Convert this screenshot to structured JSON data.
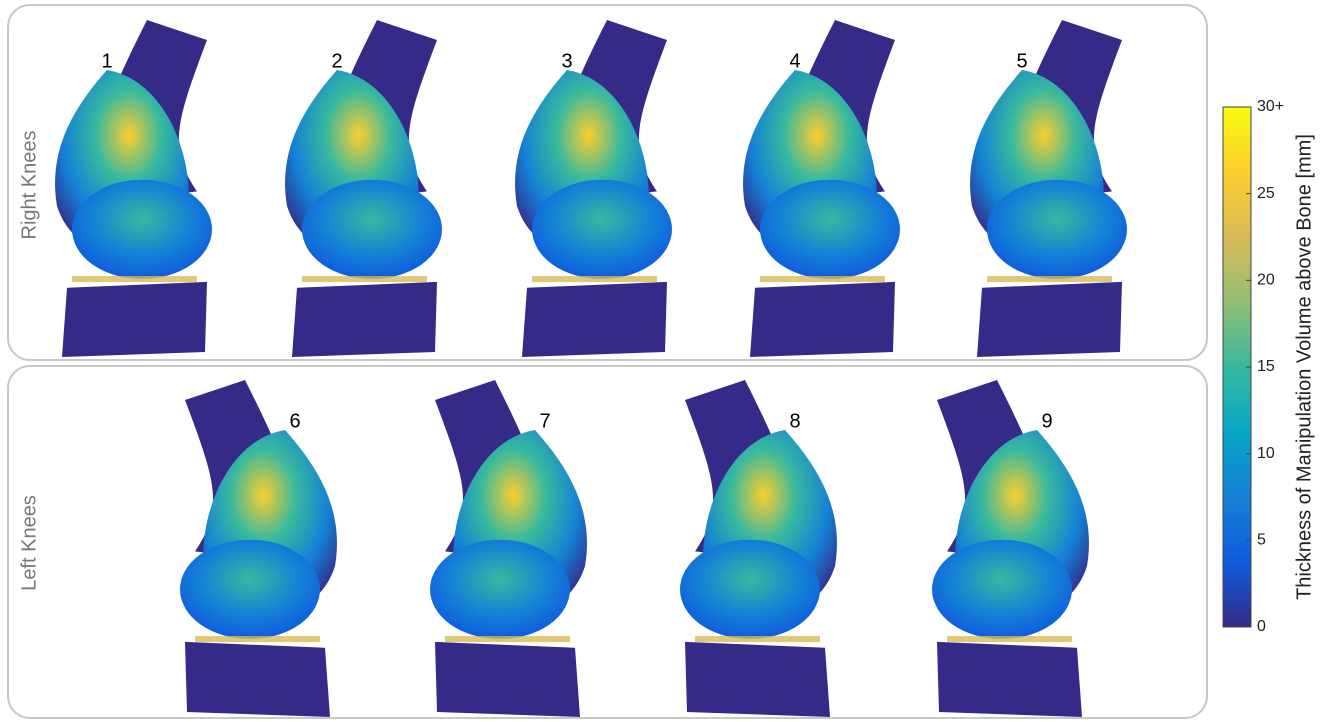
{
  "panels": [
    {
      "label": "Right Knees",
      "knees": [
        "1",
        "2",
        "3",
        "4",
        "5"
      ]
    },
    {
      "label": "Left Knees",
      "knees": [
        "6",
        "7",
        "8",
        "9"
      ]
    }
  ],
  "colorbar": {
    "label": "Thickness of Manipulation Volume above Bone [mm]",
    "lim": [
      0,
      30
    ],
    "ticks": [
      0,
      5,
      10,
      15,
      20,
      25,
      {
        "value": 30,
        "label": "30+"
      }
    ],
    "colormap": [
      "#352a87",
      "#0f5cdd",
      "#1481d6",
      "#06a7c6",
      "#38b99e",
      "#92bf73",
      "#d9ba56",
      "#fcce2e",
      "#f9fb0e"
    ]
  }
}
